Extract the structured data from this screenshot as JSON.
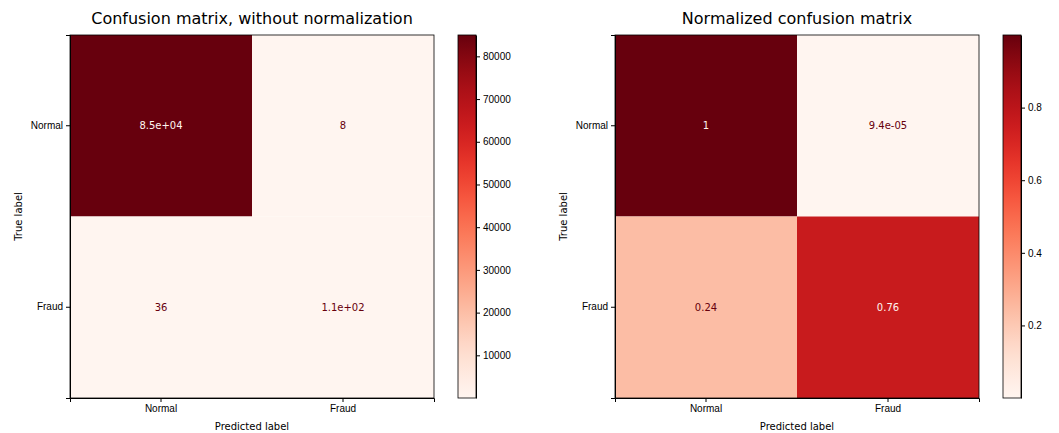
{
  "chart_data": [
    {
      "type": "heatmap",
      "title": "Confusion matrix, without normalization",
      "x_label": "Predicted label",
      "y_label": "True label",
      "x_categories": [
        "Normal",
        "Fraud"
      ],
      "y_categories": [
        "Normal",
        "Fraud"
      ],
      "cells": [
        [
          85000,
          8
        ],
        [
          36,
          110
        ]
      ],
      "cell_labels": [
        [
          "8.5e+04",
          "8"
        ],
        [
          "36",
          "1.1e+02"
        ]
      ],
      "color": "Reds",
      "colorbar_range": [
        8,
        85000
      ],
      "colorbar_ticks": [
        10000,
        20000,
        30000,
        40000,
        50000,
        60000,
        70000,
        80000
      ]
    },
    {
      "type": "heatmap",
      "title": "Normalized confusion matrix",
      "x_label": "Predicted label",
      "y_label": "True label",
      "x_categories": [
        "Normal",
        "Fraud"
      ],
      "y_categories": [
        "Normal",
        "Fraud"
      ],
      "cells": [
        [
          1,
          9.4e-05
        ],
        [
          0.24,
          0.76
        ]
      ],
      "cell_labels": [
        [
          "1",
          "9.4e-05"
        ],
        [
          "0.24",
          "0.76"
        ]
      ],
      "color": "Reds",
      "colorbar_range": [
        9.4e-05,
        1
      ],
      "colorbar_ticks": [
        0.2,
        0.4,
        0.6,
        0.8
      ]
    }
  ]
}
